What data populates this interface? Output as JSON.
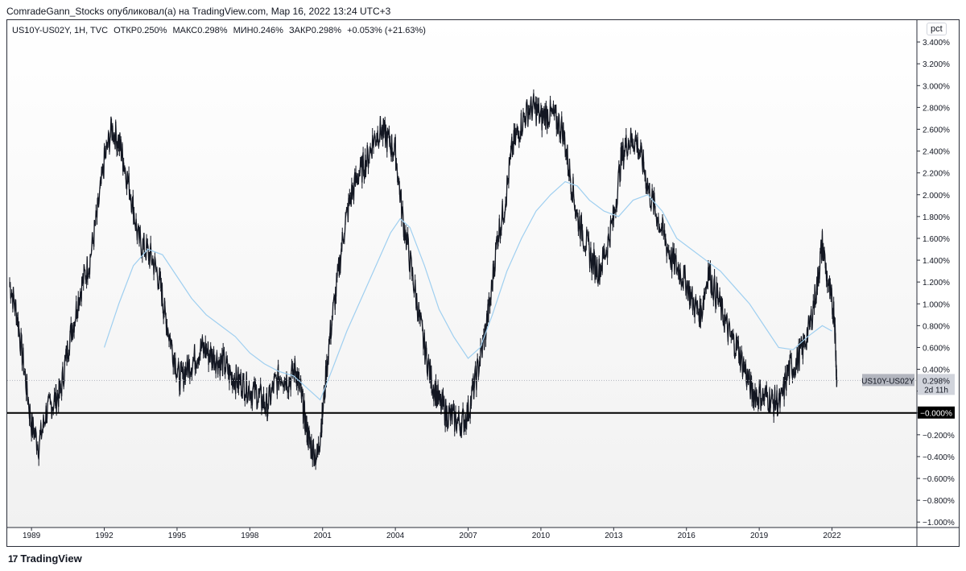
{
  "header": {
    "caption": "ComradeGann_Stocks опубликовал(а) на TradingView.com, Мар 16, 2022 13:24 UTC+3",
    "symbol_line": "US10Y-US02Y, 1H, TVC",
    "open_label": "ОТКР",
    "open_value": "0.250%",
    "high_label": "МАКС",
    "high_value": "0.298%",
    "low_label": "МИН",
    "low_value": "0.246%",
    "close_label": "ЗАКР",
    "close_value": "0.298%",
    "change": "+0.053% (+21.63%)"
  },
  "scale_badge": "pct",
  "footer": {
    "logo_mark": "17",
    "logo_text": "TradingView"
  },
  "colors": {
    "candle": "#131722",
    "ma_line": "#9fcff0",
    "zero_line": "#000000",
    "price_tag": "#b2b5be"
  },
  "price_tag": {
    "symbol": "US10Y-US02Y",
    "value": "0.298%",
    "countdown": "2d 11h"
  },
  "chart_data": {
    "type": "line",
    "title": "",
    "xlabel": "",
    "ylabel": "",
    "x_ticks": [
      "1989",
      "1992",
      "1995",
      "1998",
      "2001",
      "2004",
      "2007",
      "2010",
      "2013",
      "2016",
      "2019",
      "2022"
    ],
    "y_ticks": [
      "3.400%",
      "3.200%",
      "3.000%",
      "2.800%",
      "2.600%",
      "2.400%",
      "2.200%",
      "2.000%",
      "1.800%",
      "1.600%",
      "1.400%",
      "1.200%",
      "1.000%",
      "0.800%",
      "0.600%",
      "0.400%",
      "0.200%",
      "−0.000%",
      "−0.200%",
      "−0.400%",
      "−0.600%",
      "−0.800%",
      "−1.000%"
    ],
    "y_tick_values": [
      3.4,
      3.2,
      3.0,
      2.8,
      2.6,
      2.4,
      2.2,
      2.0,
      1.8,
      1.6,
      1.4,
      1.2,
      1.0,
      0.8,
      0.6,
      0.4,
      0.2,
      0.0,
      -0.2,
      -0.4,
      -0.6,
      -0.8,
      -1.0
    ],
    "ylim": [
      -1.05,
      3.6
    ],
    "xlim": [
      1988.0,
      2025.5
    ],
    "grid": false,
    "horizontal_line": 0.0,
    "last_price": 0.298,
    "series": [
      {
        "name": "US10Y-US02Y",
        "x": [
          1988.1,
          1988.4,
          1988.7,
          1989.0,
          1989.3,
          1989.6,
          1989.9,
          1990.2,
          1990.5,
          1990.8,
          1991.1,
          1991.4,
          1991.7,
          1992.0,
          1992.3,
          1992.6,
          1992.8,
          1993.1,
          1993.4,
          1993.7,
          1994.0,
          1994.3,
          1994.5,
          1994.8,
          1995.1,
          1995.4,
          1995.7,
          1996.0,
          1996.3,
          1996.6,
          1996.9,
          1997.2,
          1997.5,
          1997.8,
          1998.1,
          1998.4,
          1998.7,
          1999.0,
          1999.3,
          1999.6,
          1999.9,
          2000.1,
          2000.3,
          2000.5,
          2000.8,
          2001.0,
          2001.3,
          2001.6,
          2001.9,
          2002.2,
          2002.5,
          2002.8,
          2003.1,
          2003.4,
          2003.7,
          2004.0,
          2004.3,
          2004.6,
          2004.9,
          2005.2,
          2005.5,
          2005.8,
          2006.1,
          2006.4,
          2006.7,
          2007.0,
          2007.3,
          2007.6,
          2007.9,
          2008.2,
          2008.5,
          2008.8,
          2009.1,
          2009.4,
          2009.7,
          2010.0,
          2010.3,
          2010.6,
          2010.9,
          2011.2,
          2011.5,
          2011.8,
          2012.1,
          2012.4,
          2012.7,
          2013.0,
          2013.3,
          2013.6,
          2013.9,
          2014.2,
          2014.5,
          2014.8,
          2015.1,
          2015.4,
          2015.7,
          2016.0,
          2016.3,
          2016.6,
          2016.9,
          2017.2,
          2017.5,
          2017.8,
          2018.1,
          2018.4,
          2018.7,
          2019.0,
          2019.3,
          2019.6,
          2019.9,
          2020.2,
          2020.5,
          2020.8,
          2021.1,
          2021.4,
          2021.6,
          2021.9,
          2022.1,
          2022.2
        ],
        "values": [
          1.2,
          0.9,
          0.4,
          -0.1,
          -0.3,
          0.0,
          0.1,
          0.2,
          0.6,
          0.9,
          1.2,
          1.4,
          1.8,
          2.3,
          2.6,
          2.5,
          2.3,
          2.0,
          1.6,
          1.5,
          1.4,
          1.2,
          0.9,
          0.6,
          0.3,
          0.4,
          0.5,
          0.6,
          0.55,
          0.5,
          0.45,
          0.35,
          0.3,
          0.25,
          0.2,
          0.15,
          0.05,
          0.25,
          0.35,
          0.3,
          0.4,
          0.2,
          -0.1,
          -0.3,
          -0.4,
          0.0,
          0.7,
          1.2,
          1.7,
          2.0,
          2.2,
          2.3,
          2.5,
          2.6,
          2.5,
          2.4,
          1.8,
          1.4,
          1.0,
          0.6,
          0.3,
          0.1,
          0.0,
          -0.05,
          -0.1,
          0.0,
          0.3,
          0.6,
          1.0,
          1.6,
          1.9,
          2.4,
          2.6,
          2.75,
          2.8,
          2.7,
          2.75,
          2.7,
          2.6,
          2.2,
          1.8,
          1.6,
          1.4,
          1.3,
          1.5,
          1.8,
          2.3,
          2.5,
          2.5,
          2.3,
          2.0,
          1.8,
          1.6,
          1.4,
          1.3,
          1.2,
          1.0,
          0.9,
          1.3,
          1.1,
          0.9,
          0.7,
          0.6,
          0.4,
          0.2,
          0.15,
          0.15,
          0.1,
          0.1,
          0.4,
          0.45,
          0.6,
          0.8,
          1.2,
          1.55,
          1.1,
          0.9,
          0.3
        ]
      },
      {
        "name": "",
        "x": [
          1992.0,
          1992.6,
          1993.2,
          1993.8,
          1994.4,
          1995.0,
          1995.6,
          1996.2,
          1996.8,
          1997.4,
          1998.0,
          1998.6,
          1999.2,
          1999.8,
          2000.4,
          2000.9,
          2001.4,
          2002.0,
          2002.6,
          2003.2,
          2003.8,
          2004.2,
          2004.6,
          2005.2,
          2005.8,
          2006.4,
          2007.0,
          2007.5,
          2008.0,
          2008.6,
          2009.2,
          2009.8,
          2010.4,
          2011.0,
          2011.5,
          2012.0,
          2012.6,
          2013.2,
          2013.8,
          2014.4,
          2015.0,
          2015.6,
          2016.2,
          2016.8,
          2017.4,
          2018.0,
          2018.6,
          2019.2,
          2019.8,
          2020.4,
          2021.0,
          2021.6,
          2022.0
        ],
        "values": [
          0.6,
          1.0,
          1.35,
          1.5,
          1.45,
          1.25,
          1.05,
          0.9,
          0.8,
          0.7,
          0.55,
          0.45,
          0.38,
          0.34,
          0.22,
          0.12,
          0.4,
          0.75,
          1.05,
          1.35,
          1.65,
          1.78,
          1.7,
          1.35,
          0.95,
          0.7,
          0.5,
          0.6,
          0.9,
          1.3,
          1.6,
          1.85,
          2.0,
          2.12,
          2.08,
          1.95,
          1.85,
          1.8,
          1.95,
          2.0,
          1.85,
          1.6,
          1.5,
          1.4,
          1.3,
          1.15,
          1.0,
          0.8,
          0.6,
          0.58,
          0.7,
          0.8,
          0.75
        ]
      }
    ]
  }
}
